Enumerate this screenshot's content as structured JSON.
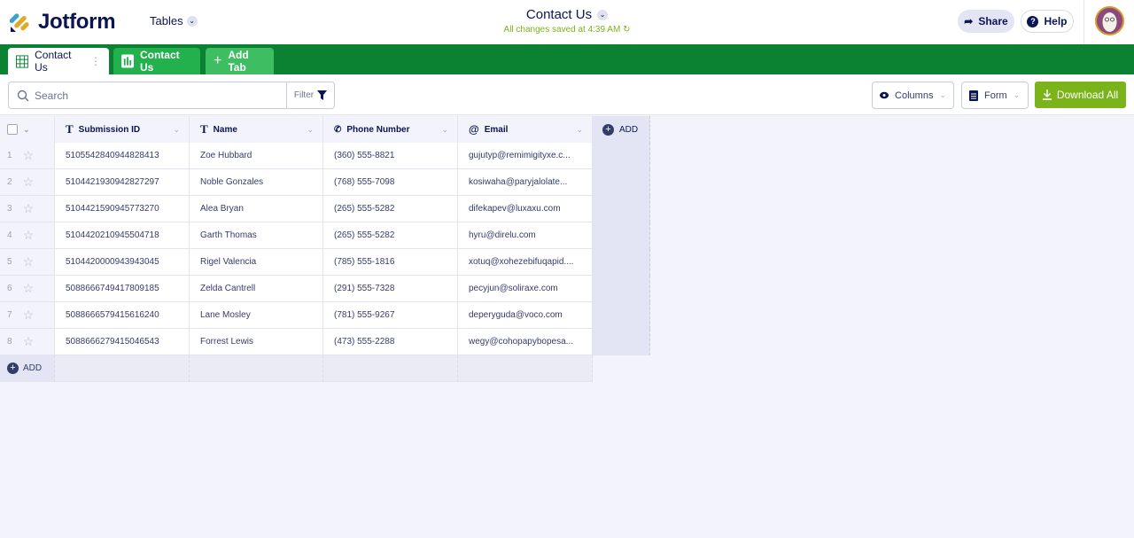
{
  "header": {
    "brand": "Jotform",
    "product_menu": "Tables",
    "title": "Contact Us",
    "saved_status": "All changes saved at 4:39 AM",
    "share_label": "Share",
    "help_label": "Help"
  },
  "tabs": [
    {
      "label": "Contact Us",
      "type": "table",
      "active": true
    },
    {
      "label": "Contact Us",
      "type": "report"
    },
    {
      "label": "Add Tab"
    }
  ],
  "toolbar": {
    "search_placeholder": "Search",
    "filter_label": "Filter",
    "columns_label": "Columns",
    "form_label": "Form",
    "download_label": "Download All"
  },
  "table": {
    "columns": [
      {
        "label": "Submission ID",
        "icon": "text-icon"
      },
      {
        "label": "Name",
        "icon": "text-icon"
      },
      {
        "label": "Phone Number",
        "icon": "phone-icon"
      },
      {
        "label": "Email",
        "icon": "at-icon"
      }
    ],
    "add_column_label": "ADD",
    "add_row_label": "ADD",
    "rows": [
      {
        "n": "1",
        "id": "5105542840944828413",
        "name": "Zoe Hubbard",
        "phone": "(360) 555-8821",
        "email": "gujutyp@remimigityxe.c..."
      },
      {
        "n": "2",
        "id": "5104421930942827297",
        "name": "Noble Gonzales",
        "phone": "(768) 555-7098",
        "email": "kosiwaha@paryjalolate..."
      },
      {
        "n": "3",
        "id": "5104421590945773270",
        "name": "Alea Bryan",
        "phone": "(265) 555-5282",
        "email": "difekapev@luxaxu.com"
      },
      {
        "n": "4",
        "id": "5104420210945504718",
        "name": "Garth Thomas",
        "phone": "(265) 555-5282",
        "email": "hyru@direlu.com"
      },
      {
        "n": "5",
        "id": "5104420000943943045",
        "name": "Rigel Valencia",
        "phone": "(785) 555-1816",
        "email": "xotuq@xohezebifuqapid...."
      },
      {
        "n": "6",
        "id": "5088666749417809185",
        "name": "Zelda Cantrell",
        "phone": "(291) 555-7328",
        "email": "pecyjun@soliraxe.com"
      },
      {
        "n": "7",
        "id": "5088666579415616240",
        "name": "Lane Mosley",
        "phone": "(781) 555-9267",
        "email": "deperyguda@voco.com"
      },
      {
        "n": "8",
        "id": "5088666279415046543",
        "name": "Forrest Lewis",
        "phone": "(473) 555-2288",
        "email": "wegy@cohopapybopesa..."
      }
    ]
  },
  "colors": {
    "tab_bar": "#0b8132",
    "accent_green": "#7bb31a",
    "navy": "#0a1551"
  }
}
